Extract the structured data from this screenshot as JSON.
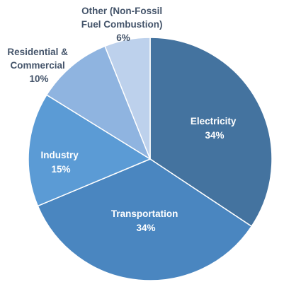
{
  "chart_data": {
    "type": "pie",
    "title": "",
    "legend": "none",
    "start_angle_deg": 0,
    "direction": "clockwise",
    "slices": [
      {
        "label": "Electricity",
        "value": 34,
        "value_label": "34%",
        "color": "#44739f",
        "label_color": "#ffffff"
      },
      {
        "label": "Transportation",
        "value": 34,
        "value_label": "34%",
        "color": "#4a86c0",
        "label_color": "#ffffff"
      },
      {
        "label": "Industry",
        "value": 15,
        "value_label": "15%",
        "color": "#5b9bd5",
        "label_color": "#ffffff"
      },
      {
        "label": "Residential & Commercial",
        "value": 10,
        "value_label": "10%",
        "color": "#8fb4e0",
        "label_color": "#44546a"
      },
      {
        "label": "Other (Non-Fossil Fuel Combustion)",
        "value": 6,
        "value_label": "6%",
        "color": "#bdd1ec",
        "label_color": "#44546a"
      }
    ]
  }
}
